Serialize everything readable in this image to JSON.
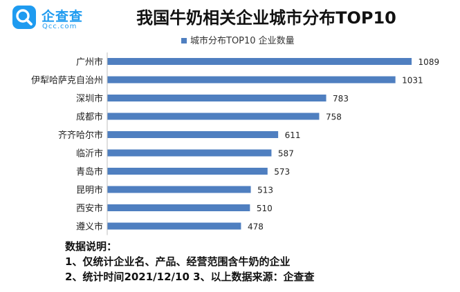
{
  "logo": {
    "name": "企查查",
    "domain": "Qcc.com"
  },
  "colors": {
    "bar": "#4f7fc0",
    "brand": "#1e9bf0"
  },
  "chart_data": {
    "type": "bar",
    "orientation": "horizontal",
    "title": "我国牛奶相关企业城市分布TOP10",
    "legend_position": "top",
    "grid": false,
    "xlim": [
      0,
      1100
    ],
    "categories": [
      "广州市",
      "伊犁哈萨克自治州",
      "深圳市",
      "成都市",
      "齐齐哈尔市",
      "临沂市",
      "青岛市",
      "昆明市",
      "西安市",
      "遵义市"
    ],
    "series": [
      {
        "name": "城市分布TOP10 企业数量",
        "values": [
          1089,
          1031,
          783,
          758,
          611,
          587,
          573,
          513,
          510,
          478
        ]
      }
    ]
  },
  "notes": {
    "heading": "数据说明：",
    "line1": "1、仅统计企业名、产品、经营范围含牛奶的企业",
    "line2": "2、统计时间2021/12/10   3、以上数据来源：企查查"
  }
}
